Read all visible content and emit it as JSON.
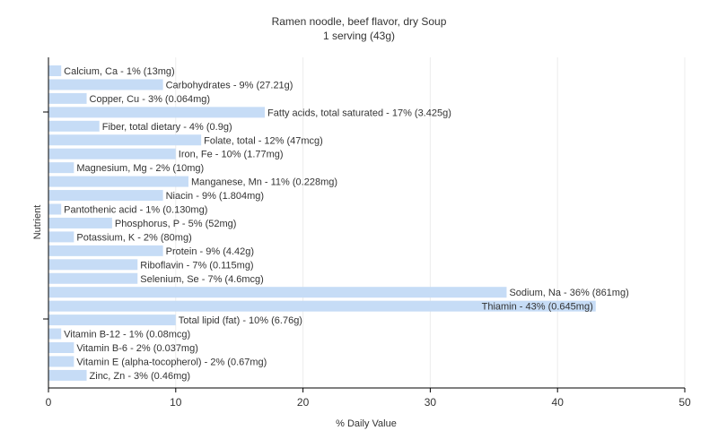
{
  "title": "Ramen noodle, beef flavor, dry Soup",
  "subtitle": "1 serving (43g)",
  "chart_data": {
    "type": "bar",
    "orientation": "horizontal",
    "xlabel": "% Daily Value",
    "ylabel": "Nutrient",
    "xlim": [
      0,
      50
    ],
    "xticks": [
      0,
      10,
      20,
      30,
      40,
      50
    ],
    "grid": true,
    "bar_color": "#c6dcf6",
    "categories": [
      "Calcium, Ca",
      "Carbohydrates",
      "Copper, Cu",
      "Fatty acids, total saturated",
      "Fiber, total dietary",
      "Folate, total",
      "Iron, Fe",
      "Magnesium, Mg",
      "Manganese, Mn",
      "Niacin",
      "Pantothenic acid",
      "Phosphorus, P",
      "Potassium, K",
      "Protein",
      "Riboflavin",
      "Selenium, Se",
      "Sodium, Na",
      "Thiamin",
      "Total lipid (fat)",
      "Vitamin B-12",
      "Vitamin B-6",
      "Vitamin E (alpha-tocopherol)",
      "Zinc, Zn"
    ],
    "values": [
      1,
      9,
      3,
      17,
      4,
      12,
      10,
      2,
      11,
      9,
      1,
      5,
      2,
      9,
      7,
      7,
      36,
      43,
      10,
      1,
      2,
      2,
      3
    ],
    "labels": [
      "Calcium, Ca - 1% (13mg)",
      "Carbohydrates - 9% (27.21g)",
      "Copper, Cu - 3% (0.064mg)",
      "Fatty acids, total saturated - 17% (3.425g)",
      "Fiber, total dietary - 4% (0.9g)",
      "Folate, total - 12% (47mcg)",
      "Iron, Fe - 10% (1.77mg)",
      "Magnesium, Mg - 2% (10mg)",
      "Manganese, Mn - 11% (0.228mg)",
      "Niacin - 9% (1.804mg)",
      "Pantothenic acid - 1% (0.130mg)",
      "Phosphorus, P - 5% (52mg)",
      "Potassium, K - 2% (80mg)",
      "Protein - 9% (4.42g)",
      "Riboflavin - 7% (0.115mg)",
      "Selenium, Se - 7% (4.6mcg)",
      "Sodium, Na - 36% (861mg)",
      "Thiamin - 43% (0.645mg)",
      "Total lipid (fat) - 10% (6.76g)",
      "Vitamin B-12 - 1% (0.08mcg)",
      "Vitamin B-6 - 2% (0.037mg)",
      "Vitamin E (alpha-tocopherol) - 2% (0.67mg)",
      "Zinc, Zn - 3% (0.46mg)"
    ]
  }
}
